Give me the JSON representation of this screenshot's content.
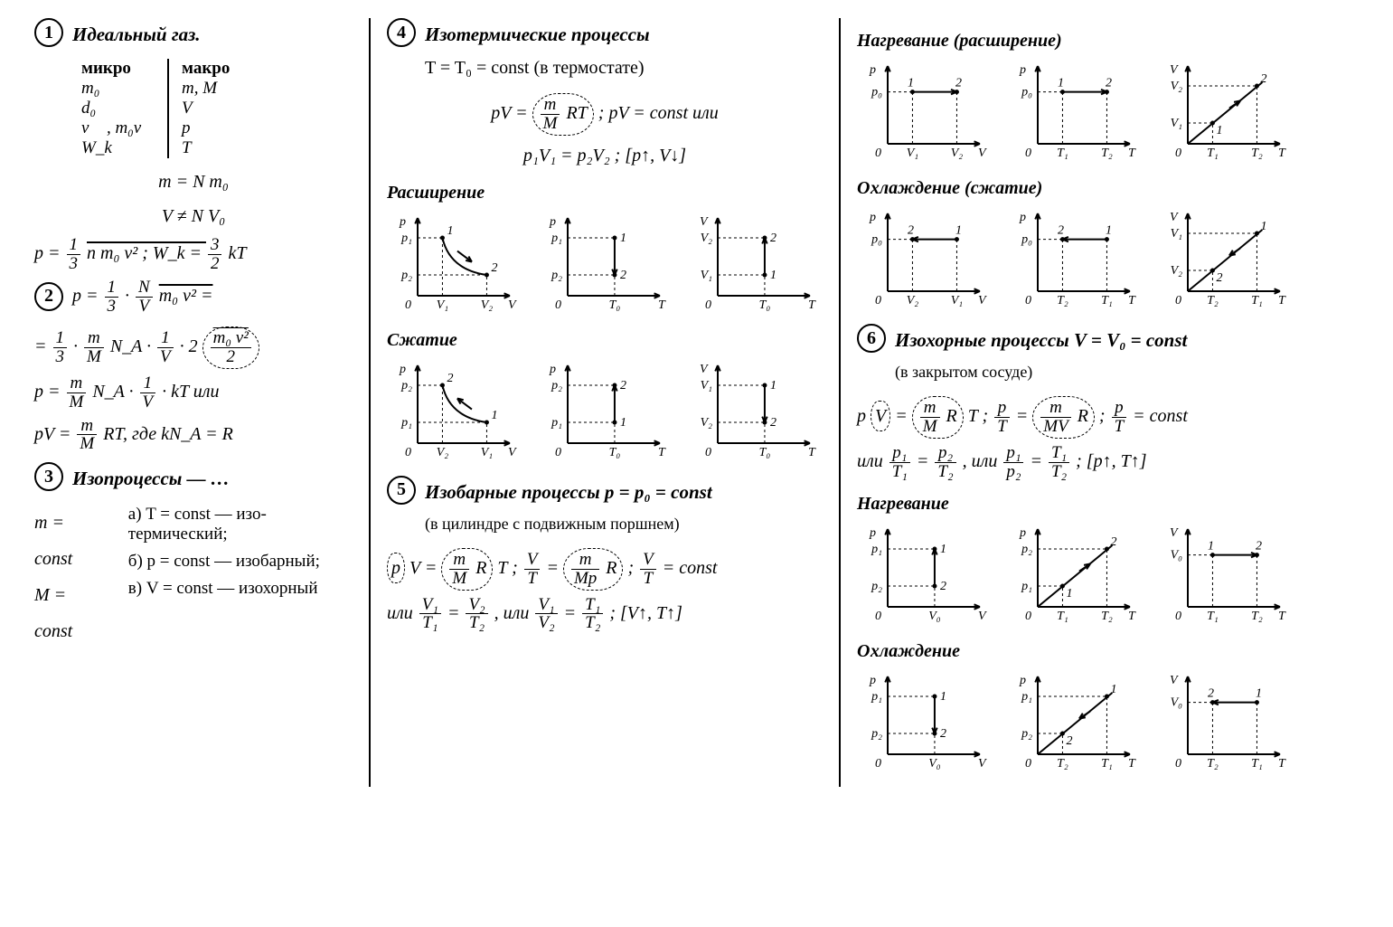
{
  "col1": {
    "s1": {
      "num": "1",
      "title": "Идеальный газ.",
      "micro_h": "микро",
      "macro_h": "макро",
      "micro": [
        "m₀",
        "d₀",
        "v⃗ , m₀v⃗",
        "W_k"
      ],
      "macro": [
        "m, M",
        "V",
        "p",
        "T"
      ],
      "eq1": "m = N m₀",
      "eq2": "V ≠ N V₀",
      "eq3_lhs": "p = ",
      "eq3_frac_n": "1",
      "eq3_frac_d": "3",
      "eq3_rest": " n m₀ v² ;   W_k = ",
      "eq3b_n": "3",
      "eq3b_d": "2",
      "eq3b_rest": " kT"
    },
    "s2": {
      "num": "2",
      "line1_a": "p = ",
      "f1n": "1",
      "f1d": "3",
      "dot": " · ",
      "f2n": "N",
      "f2d": "V",
      "line1_b": " m₀ v² =",
      "line2_a": "= ",
      "f3n": "1",
      "f3d": "3",
      "f4n": "m",
      "f4d": "M",
      "line2_b": " N_A · ",
      "f5n": "1",
      "f5d": "V",
      "line2_c": " · 2 ",
      "circ_n": "m₀ v²",
      "circ_d": "2",
      "line3_a": "p = ",
      "f6n": "m",
      "f6d": "M",
      "line3_b": " N_A · ",
      "f7n": "1",
      "f7d": "V",
      "line3_c": " · kT   или",
      "line4_a": "pV = ",
      "f8n": "m",
      "f8d": "M",
      "line4_b": " RT,  где  kN_A = R"
    },
    "s3": {
      "num": "3",
      "title": "Изопроцессы — …",
      "l1": "m = const",
      "l2": "M = const",
      "a": "а)  T = const — изо­термический;",
      "b": "б)  p = const — изо­барный;",
      "c": "в)  V = const — изо­хорный"
    }
  },
  "col2": {
    "s4": {
      "num": "4",
      "title": "Изотермические процессы",
      "sub1": "T = T₀ = const  (в термостате)",
      "eq1_a": "pV = ",
      "eq1_circ_n": "m",
      "eq1_circ_d": "M",
      "eq1_circ_r": " RT",
      "eq1_b": " ;   pV = const   или",
      "eq2": "p₁V₁ = p₂V₂ ;   [p↑, V↓]",
      "exp_title": "Расширение",
      "comp_title": "Сжатие",
      "graphs_exp": [
        {
          "xl": "V",
          "yl": "p",
          "x1": "V₁",
          "x2": "V₂",
          "y1": "p₁",
          "y2": "p₂",
          "type": "hyp_down",
          "p1": "1",
          "p2": "2"
        },
        {
          "xl": "T",
          "yl": "p",
          "x1": "T₀",
          "y1": "p₁",
          "y2": "p₂",
          "type": "vert_down",
          "p1": "1",
          "p2": "2"
        },
        {
          "xl": "T",
          "yl": "V",
          "x1": "T₀",
          "y1": "V₂",
          "y2": "V₁",
          "type": "vert_up",
          "p1": "2",
          "p2": "1"
        }
      ],
      "graphs_comp": [
        {
          "xl": "V",
          "yl": "p",
          "x1": "V₂",
          "x2": "V₁",
          "y1": "p₂",
          "y2": "p₁",
          "type": "hyp_up",
          "p1": "2",
          "p2": "1"
        },
        {
          "xl": "T",
          "yl": "p",
          "x1": "T₀",
          "y1": "p₂",
          "y2": "p₁",
          "type": "vert_up",
          "p1": "2",
          "p2": "1"
        },
        {
          "xl": "T",
          "yl": "V",
          "x1": "T₀",
          "y1": "V₁",
          "y2": "V₂",
          "type": "vert_down",
          "p1": "1",
          "p2": "2"
        }
      ]
    },
    "s5": {
      "num": "5",
      "title": "Изобарные процессы  p = p₀ = const",
      "sub1": "(в цилиндре с подвижным поршнем)",
      "eq1_a": "p V = ",
      "circ1_n": "m",
      "circ1_d": "M",
      "circ1_r": " R",
      "eq1_b": " T ;   ",
      "f1n": "V",
      "f1d": "T",
      "eq1_c": " = ",
      "circ2_n": "m",
      "circ2_d": "Mp",
      "circ2_r": " R",
      "eq1_d": " ;   ",
      "f2n": "V",
      "f2d": "T",
      "eq1_e": " = const",
      "eq2_a": "или  ",
      "f3n": "V₁",
      "f3d": "T₁",
      "eq2_b": " = ",
      "f4n": "V₂",
      "f4d": "T₂",
      "eq2_c": " ,  или  ",
      "f5n": "V₁",
      "f5d": "V₂",
      "eq2_d": " = ",
      "f6n": "T₁",
      "f6d": "T₂",
      "eq2_e": " ;   [V↑, T↑]"
    }
  },
  "col3": {
    "isobar": {
      "heat_title": "Нагревание (расширение)",
      "cool_title": "Охлаждение (сжатие)",
      "graphs_heat": [
        {
          "xl": "V",
          "yl": "p",
          "x1": "V₁",
          "x2": "V₂",
          "y1": "p₀",
          "type": "horiz_right",
          "p1": "1",
          "p2": "2"
        },
        {
          "xl": "T",
          "yl": "p",
          "x1": "T₁",
          "x2": "T₂",
          "y1": "p₀",
          "type": "horiz_right",
          "p1": "1",
          "p2": "2"
        },
        {
          "xl": "T",
          "yl": "V",
          "x1": "T₁",
          "x2": "T₂",
          "y1": "V₁",
          "y2": "V₂",
          "type": "diag_up",
          "p1": "1",
          "p2": "2"
        }
      ],
      "graphs_cool": [
        {
          "xl": "V",
          "yl": "p",
          "x1": "V₂",
          "x2": "V₁",
          "y1": "p₀",
          "type": "horiz_left",
          "p1": "2",
          "p2": "1"
        },
        {
          "xl": "T",
          "yl": "p",
          "x1": "T₂",
          "x2": "T₁",
          "y1": "p₀",
          "type": "horiz_left",
          "p1": "2",
          "p2": "1"
        },
        {
          "xl": "T",
          "yl": "V",
          "x1": "T₂",
          "x2": "T₁",
          "y1": "V₂",
          "y2": "V₁",
          "type": "diag_down",
          "p1": "2",
          "p2": "1"
        }
      ]
    },
    "s6": {
      "num": "6",
      "title": "Изохорные процессы  V = V₀ = const",
      "sub1": "(в закрытом сосуде)",
      "eq1_a": "p V = ",
      "circ1_n": "m",
      "circ1_d": "M",
      "circ1_r": " R",
      "eq1_b": " T   ;   ",
      "f1n": "p",
      "f1d": "T",
      "eq1_c": " = ",
      "circ2_n": "m",
      "circ2_d": "MV",
      "circ2_r": " R",
      "eq1_d": " ;   ",
      "f2n": "p",
      "f2d": "T",
      "eq1_e": " = const",
      "eq2_a": "или  ",
      "f3n": "p₁",
      "f3d": "T₁",
      "eq2_b": " = ",
      "f4n": "p₂",
      "f4d": "T₂",
      "eq2_c": " ,  или  ",
      "f5n": "p₁",
      "f5d": "p₂",
      "eq2_d": " = ",
      "f6n": "T₁",
      "f6d": "T₂",
      "eq2_e": " ;   [p↑, T↑]",
      "heat_title": "Нагревание",
      "cool_title": "Охлаждение",
      "graphs_heat": [
        {
          "xl": "V",
          "yl": "p",
          "x1": "V₀",
          "y1": "p₁",
          "y2": "p₂",
          "type": "vert_up",
          "p1": "1",
          "p2": "2"
        },
        {
          "xl": "T",
          "yl": "p",
          "x1": "T₁",
          "x2": "T₂",
          "y1": "p₁",
          "y2": "p₂",
          "type": "diag_up",
          "p1": "1",
          "p2": "2"
        },
        {
          "xl": "T",
          "yl": "V",
          "x1": "T₁",
          "x2": "T₂",
          "y1": "V₀",
          "type": "horiz_right",
          "p1": "1",
          "p2": "2"
        }
      ],
      "graphs_cool": [
        {
          "xl": "V",
          "yl": "p",
          "x1": "V₀",
          "y1": "p₁",
          "y2": "p₂",
          "type": "vert_down",
          "p1": "1",
          "p2": "2"
        },
        {
          "xl": "T",
          "yl": "p",
          "x1": "T₂",
          "x2": "T₁",
          "y1": "p₂",
          "y2": "p₁",
          "type": "diag_down",
          "p1": "2",
          "p2": "1"
        },
        {
          "xl": "T",
          "yl": "V",
          "x1": "T₂",
          "x2": "T₁",
          "y1": "V₀",
          "type": "horiz_left",
          "p1": "2",
          "p2": "1"
        }
      ]
    }
  },
  "graph_style": {
    "w": 150,
    "h": 120,
    "axis_color": "#000",
    "dash": "3,3",
    "font_size": 14,
    "dot_r": 2.5
  }
}
